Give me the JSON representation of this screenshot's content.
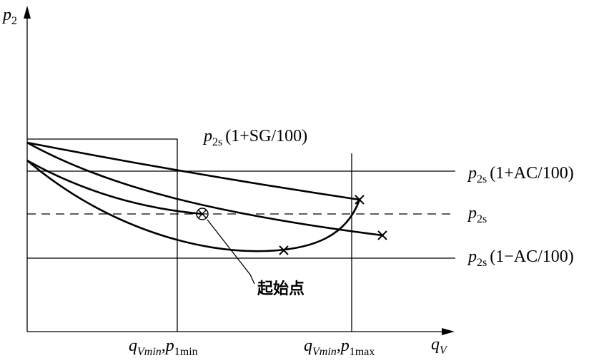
{
  "y_axis_label": {
    "symbol": "p",
    "sub": "2"
  },
  "x_axis_label": {
    "symbol": "q",
    "sub": "V"
  },
  "curve_label": {
    "symbol": "p",
    "sub": "2s",
    "suffix": "(1+SG/100)"
  },
  "reference_lines": [
    {
      "symbol": "p",
      "sub": "2s",
      "suffix": "(1+AC/100)"
    },
    {
      "symbol": "p",
      "sub": "2s"
    },
    {
      "symbol": "p",
      "sub": "2s",
      "suffix": "(1−AC/100)"
    }
  ],
  "x_markers": [
    {
      "symbol": "q",
      "sub": "Vmin",
      "symbol2": ",p",
      "sub2": "1min"
    },
    {
      "symbol": "q",
      "sub": "Vmin",
      "symbol2": ",p",
      "sub2": "1max"
    }
  ],
  "annotation": "起始点"
}
